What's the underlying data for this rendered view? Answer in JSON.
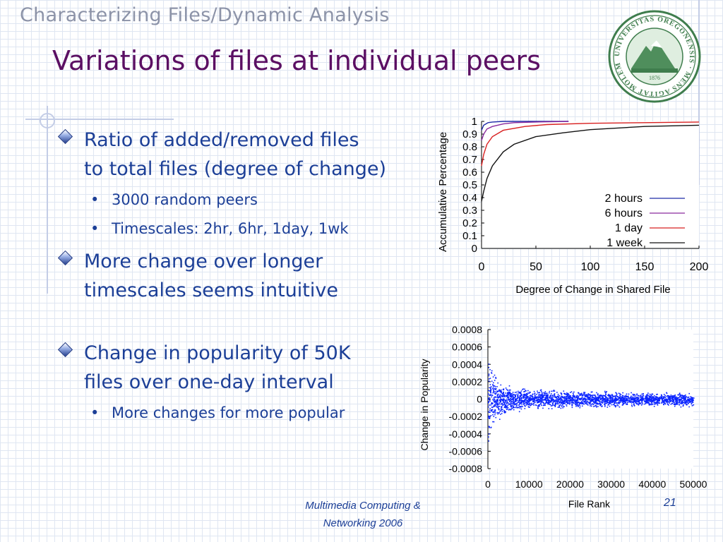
{
  "header": {
    "section": "Characterizing Files/Dynamic Analysis"
  },
  "slide": {
    "title": "Variations of files at individual peers"
  },
  "bullets": [
    {
      "lines": [
        "Ratio of  added/removed files",
        "to total files (degree of change)"
      ],
      "sub": [
        "3000 random peers",
        "Timescales: 2hr, 6hr, 1day, 1wk"
      ]
    },
    {
      "lines": [
        "More change over longer",
        "timescales seems intuitive"
      ],
      "sub": []
    },
    {
      "lines": [
        "Change in popularity of 50K",
        "files over one-day interval"
      ],
      "sub": [
        "More changes for more popular"
      ]
    }
  ],
  "logo": {
    "text": "UNIVERSITAS OREGONENSIS · MENS AGITAT MOLEM",
    "year": "1876"
  },
  "footer": {
    "line1": "Multimedia Computing &",
    "line2": "Networking 2006",
    "page": "21"
  },
  "colors": {
    "title": "#5b0f63",
    "body": "#1c3f97",
    "header": "#8c93a8",
    "scatter": "#0a24ff"
  },
  "chart_data": [
    {
      "type": "line",
      "title": "",
      "xlabel": "Degree of Change in Shared File",
      "ylabel": "Accumulative Percentage",
      "xlim": [
        0,
        200
      ],
      "ylim": [
        0,
        1
      ],
      "xticks": [
        "0",
        "50",
        "100",
        "150",
        "200"
      ],
      "yticks": [
        "0",
        "0.1",
        "0.2",
        "0.3",
        "0.4",
        "0.5",
        "0.6",
        "0.7",
        "0.8",
        "0.9",
        "1"
      ],
      "legend_position": "bottom-right",
      "series": [
        {
          "name": "2 hours",
          "color": "#1f2aa8",
          "x": [
            0,
            1,
            2,
            4,
            6,
            10,
            20,
            40,
            80
          ],
          "y": [
            0.93,
            0.95,
            0.97,
            0.98,
            0.99,
            0.995,
            1,
            1,
            1
          ]
        },
        {
          "name": "6 hours",
          "color": "#8a2a9e",
          "x": [
            0,
            2,
            5,
            10,
            20,
            30,
            50,
            80
          ],
          "y": [
            0.85,
            0.9,
            0.94,
            0.96,
            0.98,
            0.99,
            0.995,
            1
          ]
        },
        {
          "name": "1 day",
          "color": "#d82020",
          "x": [
            0,
            2,
            5,
            10,
            20,
            40,
            60,
            100,
            150,
            200
          ],
          "y": [
            0.65,
            0.74,
            0.82,
            0.88,
            0.93,
            0.96,
            0.975,
            0.985,
            0.99,
            0.995
          ]
        },
        {
          "name": "1 week",
          "color": "#111111",
          "x": [
            0,
            2,
            5,
            10,
            20,
            30,
            50,
            75,
            100,
            150,
            200
          ],
          "y": [
            0.37,
            0.45,
            0.55,
            0.65,
            0.76,
            0.82,
            0.88,
            0.91,
            0.935,
            0.96,
            0.97
          ]
        }
      ]
    },
    {
      "type": "scatter",
      "title": "",
      "xlabel": "File Rank",
      "ylabel": "Change in Popularity",
      "xlim": [
        0,
        50000
      ],
      "ylim": [
        -0.0008,
        0.0008
      ],
      "xticks": [
        "0",
        "10000",
        "20000",
        "30000",
        "40000",
        "50000"
      ],
      "yticks": [
        "0.0008",
        "0.0006",
        "0.0004",
        "0.0002",
        "0",
        "-0.0002",
        "-0.0004",
        "-0.0006",
        "-0.0008"
      ],
      "envelope": {
        "rank": [
          0,
          500,
          2000,
          5000,
          10000,
          20000,
          30000,
          40000,
          50000
        ],
        "spread": [
          0.0006,
          0.0004,
          0.00025,
          0.00016,
          0.00012,
          0.0001,
          9e-05,
          8e-05,
          8e-05
        ]
      },
      "series": [
        {
          "color": "#0a24ff"
        }
      ]
    }
  ]
}
